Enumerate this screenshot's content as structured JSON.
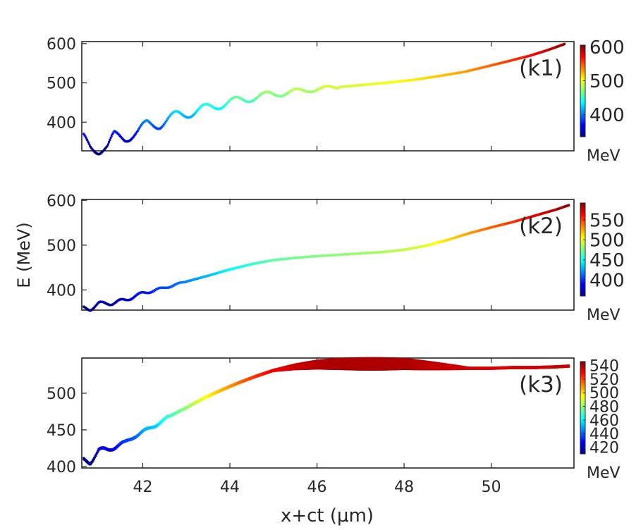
{
  "figure": {
    "xlabel": "x+ct (μm)",
    "ylabel": "E (MeV)",
    "xlim": [
      40.6,
      51.9
    ],
    "xticks": [
      42,
      44,
      46,
      48,
      50
    ],
    "colorbar_unit": "MeV"
  },
  "chart_data": [
    {
      "type": "scatter",
      "label": "(k1)",
      "xlabel": "x+ct (μm)",
      "ylabel": "E (MeV)",
      "xlim": [
        40.6,
        51.9
      ],
      "ylim": [
        327,
        605
      ],
      "yticks": [
        400,
        500,
        600
      ],
      "colorbar": {
        "range": [
          335,
          605
        ],
        "ticks": [
          400,
          500,
          600
        ],
        "unit": "MeV"
      },
      "trend": {
        "x": [
          40.65,
          40.8,
          41.0,
          41.2,
          41.35,
          41.6,
          41.9,
          42.1,
          42.4,
          42.8,
          43.2,
          43.6,
          44.0,
          44.4,
          44.9,
          45.4,
          45.9,
          46.5,
          47.0,
          47.6,
          48.2,
          48.8,
          49.4,
          50.0,
          50.4,
          50.9,
          51.3,
          51.7
        ],
        "y": [
          358,
          338,
          332,
          336,
          365,
          362,
          375,
          395,
          397,
          418,
          428,
          440,
          452,
          460,
          471,
          477,
          484,
          490,
          495,
          501,
          508,
          518,
          529,
          545,
          556,
          570,
          584,
          600
        ]
      },
      "oscillation": {
        "period_um": 0.7,
        "amplitude_MeV": 13,
        "decay_end_x": 46.5,
        "phase_offset": 1.3
      }
    },
    {
      "type": "scatter",
      "label": "(k2)",
      "xlabel": "x+ct (μm)",
      "ylabel": "E (MeV)",
      "xlim": [
        40.6,
        51.9
      ],
      "ylim": [
        355,
        602
      ],
      "yticks": [
        400,
        500,
        600
      ],
      "colorbar": {
        "range": [
          360,
          592
        ],
        "ticks": [
          400,
          450,
          500,
          550
        ],
        "unit": "MeV"
      },
      "trend": {
        "x": [
          40.65,
          40.8,
          41.0,
          41.3,
          41.6,
          42.0,
          42.5,
          43.0,
          43.5,
          44.0,
          44.5,
          45.0,
          45.5,
          46.0,
          46.5,
          47.0,
          47.5,
          48.0,
          48.5,
          49.0,
          49.5,
          50.0,
          50.5,
          51.0,
          51.5,
          51.8
        ],
        "y": [
          360,
          358,
          370,
          371,
          378,
          393,
          405,
          419,
          432,
          446,
          458,
          467,
          472,
          476,
          479,
          482,
          485,
          490,
          499,
          512,
          527,
          540,
          552,
          566,
          580,
          590
        ]
      },
      "oscillation": {
        "period_um": 0.45,
        "amplitude_MeV": 4,
        "decay_end_x": 43.0,
        "phase_offset": 0.2
      }
    },
    {
      "type": "scatter",
      "label": "(k3)",
      "xlabel": "x+ct (μm)",
      "ylabel": "E (MeV)",
      "xlim": [
        40.6,
        51.9
      ],
      "ylim": [
        398,
        548
      ],
      "yticks": [
        400,
        450,
        500
      ],
      "colorbar": {
        "range": [
          410,
          546
        ],
        "ticks": [
          420,
          440,
          460,
          480,
          500,
          520,
          540
        ],
        "unit": "MeV"
      },
      "trend": {
        "x": [
          40.65,
          40.8,
          41.0,
          41.2,
          41.4,
          41.6,
          41.8,
          42.0,
          42.3,
          42.6,
          43.0,
          43.4,
          43.8,
          44.2,
          44.6,
          45.0,
          45.5,
          46.0,
          46.5,
          47.0,
          47.5,
          48.0,
          48.5,
          49.0,
          49.5,
          50.0,
          50.5,
          51.0,
          51.5,
          51.8
        ],
        "y": [
          409,
          406,
          422,
          423,
          428,
          432,
          441,
          447,
          456,
          468,
          480,
          493,
          504,
          514,
          523,
          531,
          536,
          539,
          540,
          540,
          540,
          540,
          538,
          536,
          534,
          534,
          535,
          535,
          536,
          537
        ]
      },
      "oscillation": {
        "period_um": 0.5,
        "amplitude_MeV": 3,
        "decay_end_x": 42.6,
        "phase_offset": 0.6
      },
      "spread": {
        "start_x": 45.0,
        "end_x": 49.5,
        "half_width_MeV": 7
      }
    }
  ]
}
